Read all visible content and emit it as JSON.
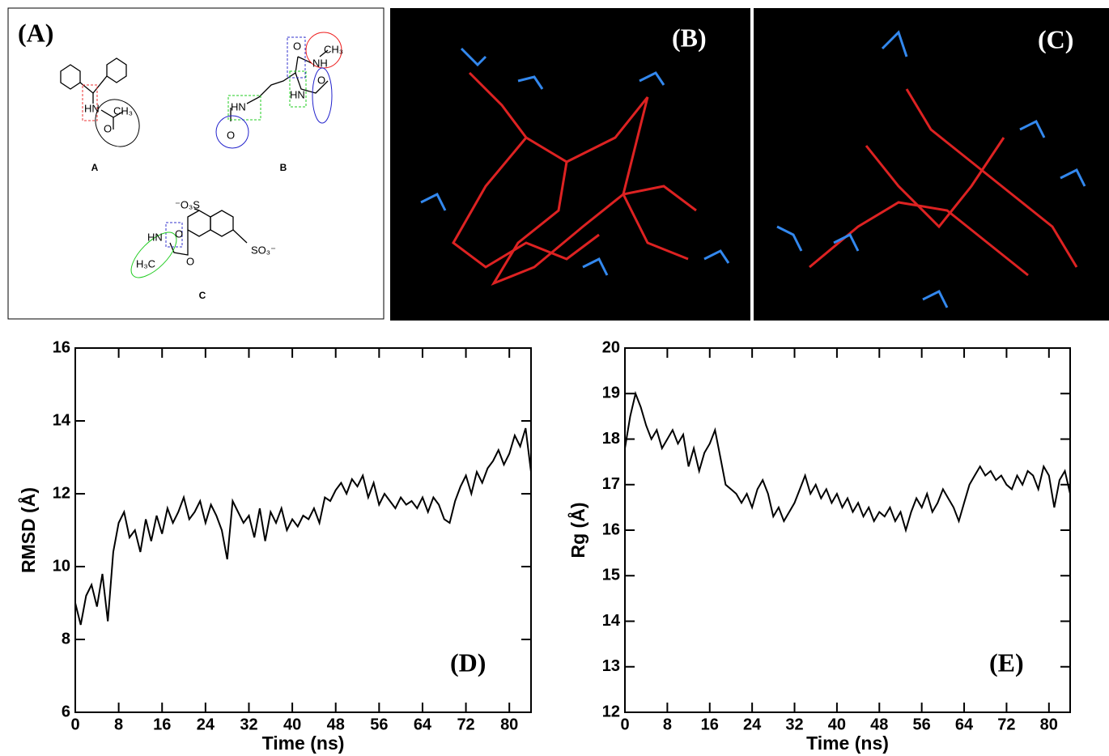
{
  "panels": {
    "A": {
      "label": "(A)",
      "captions": [
        "A",
        "B",
        "C"
      ],
      "atoms": {
        "A": [
          "HN",
          "O",
          "CH₃"
        ],
        "B": [
          "O",
          "NH",
          "CH₃",
          "HN",
          "O",
          "HN",
          "O"
        ],
        "C": [
          "⁻O₃S",
          "SO₃⁻",
          "O",
          "HN",
          "H₃C",
          "O"
        ]
      }
    },
    "B": {
      "label": "(B)"
    },
    "C": {
      "label": "(C)"
    }
  },
  "chart_data": [
    {
      "type": "line",
      "annotation": "(D)",
      "x_label": "Time (ns)",
      "y_label": "RMSD (Å)",
      "color": "#000000",
      "x": [
        0,
        1,
        2,
        3,
        4,
        5,
        6,
        7,
        8,
        9,
        10,
        11,
        12,
        13,
        14,
        15,
        16,
        17,
        18,
        19,
        20,
        21,
        22,
        23,
        24,
        25,
        26,
        27,
        28,
        29,
        30,
        31,
        32,
        33,
        34,
        35,
        36,
        37,
        38,
        39,
        40,
        41,
        42,
        43,
        44,
        45,
        46,
        47,
        48,
        49,
        50,
        51,
        52,
        53,
        54,
        55,
        56,
        57,
        58,
        59,
        60,
        61,
        62,
        63,
        64,
        65,
        66,
        67,
        68,
        69,
        70,
        71,
        72,
        73,
        74,
        75,
        76,
        77,
        78,
        79,
        80,
        81,
        82,
        83,
        84
      ],
      "values": [
        9.0,
        8.4,
        9.2,
        9.5,
        8.9,
        9.8,
        8.5,
        10.4,
        11.2,
        11.5,
        10.8,
        11.0,
        10.4,
        11.3,
        10.7,
        11.4,
        10.9,
        11.6,
        11.2,
        11.5,
        11.9,
        11.3,
        11.5,
        11.8,
        11.2,
        11.7,
        11.4,
        11.0,
        10.2,
        11.8,
        11.5,
        11.2,
        11.4,
        10.8,
        11.6,
        10.7,
        11.5,
        11.2,
        11.6,
        11.0,
        11.3,
        11.1,
        11.4,
        11.3,
        11.6,
        11.2,
        11.9,
        11.8,
        12.1,
        12.3,
        12.0,
        12.4,
        12.2,
        12.5,
        11.9,
        12.3,
        11.7,
        12.0,
        11.8,
        11.6,
        11.9,
        11.7,
        11.8,
        11.6,
        11.9,
        11.5,
        11.9,
        11.7,
        11.3,
        11.2,
        11.8,
        12.2,
        12.5,
        12.0,
        12.6,
        12.3,
        12.7,
        12.9,
        13.2,
        12.8,
        13.1,
        13.6,
        13.3,
        13.8,
        12.6
      ],
      "xlim": [
        0,
        84
      ],
      "xticks": [
        0,
        8,
        16,
        24,
        32,
        40,
        48,
        56,
        64,
        72,
        80
      ],
      "ylim": [
        6,
        16
      ],
      "yticks": [
        6,
        8,
        10,
        12,
        14,
        16
      ]
    },
    {
      "type": "line",
      "annotation": "(E)",
      "x_label": "Time (ns)",
      "y_label": "Rg (Å)",
      "color": "#000000",
      "x": [
        0,
        1,
        2,
        3,
        4,
        5,
        6,
        7,
        8,
        9,
        10,
        11,
        12,
        13,
        14,
        15,
        16,
        17,
        18,
        19,
        20,
        21,
        22,
        23,
        24,
        25,
        26,
        27,
        28,
        29,
        30,
        31,
        32,
        33,
        34,
        35,
        36,
        37,
        38,
        39,
        40,
        41,
        42,
        43,
        44,
        45,
        46,
        47,
        48,
        49,
        50,
        51,
        52,
        53,
        54,
        55,
        56,
        57,
        58,
        59,
        60,
        61,
        62,
        63,
        64,
        65,
        66,
        67,
        68,
        69,
        70,
        71,
        72,
        73,
        74,
        75,
        76,
        77,
        78,
        79,
        80,
        81,
        82,
        83,
        84
      ],
      "values": [
        17.8,
        18.5,
        19.0,
        18.7,
        18.3,
        18.0,
        18.2,
        17.8,
        18.0,
        18.2,
        17.9,
        18.1,
        17.4,
        17.8,
        17.3,
        17.7,
        17.9,
        18.2,
        17.6,
        17.0,
        16.9,
        16.8,
        16.6,
        16.8,
        16.5,
        16.9,
        17.1,
        16.8,
        16.3,
        16.5,
        16.2,
        16.4,
        16.6,
        16.9,
        17.2,
        16.8,
        17.0,
        16.7,
        16.9,
        16.6,
        16.8,
        16.5,
        16.7,
        16.4,
        16.6,
        16.3,
        16.5,
        16.2,
        16.4,
        16.3,
        16.5,
        16.2,
        16.4,
        16.0,
        16.4,
        16.7,
        16.5,
        16.8,
        16.4,
        16.6,
        16.9,
        16.7,
        16.5,
        16.2,
        16.6,
        17.0,
        17.2,
        17.4,
        17.2,
        17.3,
        17.1,
        17.2,
        17.0,
        16.9,
        17.2,
        17.0,
        17.3,
        17.2,
        16.9,
        17.4,
        17.2,
        16.5,
        17.1,
        17.3,
        16.8
      ],
      "xlim": [
        0,
        84
      ],
      "xticks": [
        0,
        8,
        16,
        24,
        32,
        40,
        48,
        56,
        64,
        72,
        80
      ],
      "ylim": [
        12,
        20
      ],
      "yticks": [
        12,
        13,
        14,
        15,
        16,
        17,
        18,
        19,
        20
      ]
    }
  ]
}
